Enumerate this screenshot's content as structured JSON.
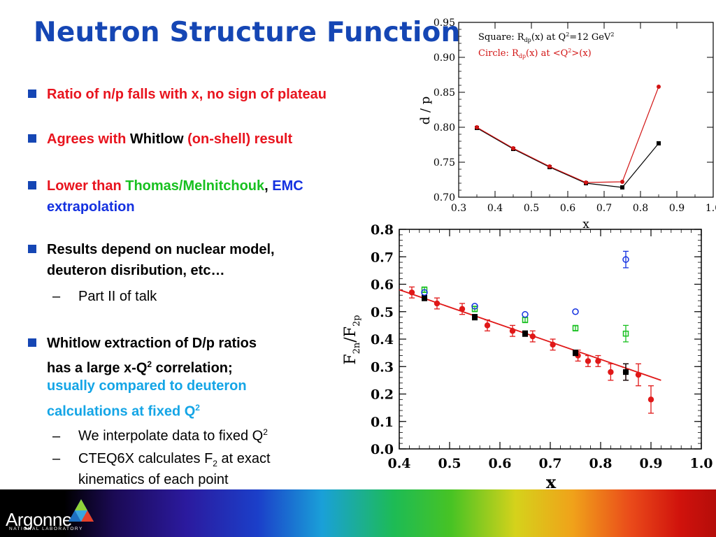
{
  "title": "Neutron Structure Function",
  "bullets": {
    "b1": "Ratio of n/p falls with x, no sign of plateau",
    "b2a": "Agrees with ",
    "b2b": "Whitlow",
    "b2c": " (on-shell) result",
    "b3a": "Lower than ",
    "b3b": "Thomas/Melnitchouk",
    "b3c": ", ",
    "b3d": "EMC",
    "b3e": "extrapolation",
    "b4a": "Results depend on nuclear model,",
    "b4b": "deuteron disribution, etc…",
    "s1": "Part II of talk",
    "b5a": "Whitlow extraction of D/p ratios",
    "b5b": "has a large x-Q",
    "b5c": " correlation;",
    "b5d": "usually compared to deuteron",
    "b5e": "calculations at fixed Q",
    "s2": "We interpolate data to fixed Q",
    "s3a": "CTEQ6X calculates F",
    "s3b": " at exact",
    "s3c": "kinematics of each point",
    "sup2": "2",
    "dash": "–"
  },
  "logo": {
    "name": "Argonne",
    "sub": "NATIONAL LABORATORY"
  },
  "chart_data": [
    {
      "type": "line",
      "xlabel": "x",
      "ylabel": "d / p",
      "xlim": [
        0.3,
        1.0
      ],
      "ylim": [
        0.7,
        0.95
      ],
      "xticks": [
        "0.3",
        "0.4",
        "0.5",
        "0.6",
        "0.7",
        "0.8",
        "0.9",
        "1.0"
      ],
      "yticks": [
        "0.70",
        "0.75",
        "0.80",
        "0.85",
        "0.90",
        "0.95"
      ],
      "legend": {
        "line1": "Square: R",
        "line1sub": "dp",
        "line1rest": "(x)  at  Q",
        "line1sup": "2",
        "line1end": "=12 GeV",
        "line1sup2": "2",
        "line2": "Circle: R",
        "line2sub": "dp",
        "line2rest": "(x)  at  <Q",
        "line2sup": "2",
        "line2end": ">(x)"
      },
      "series": [
        {
          "name": "Square",
          "color": "#000000",
          "x": [
            0.35,
            0.45,
            0.55,
            0.65,
            0.75,
            0.85
          ],
          "y": [
            0.799,
            0.769,
            0.743,
            0.72,
            0.714,
            0.777
          ]
        },
        {
          "name": "Circle",
          "color": "#d21414",
          "x": [
            0.35,
            0.45,
            0.55,
            0.65,
            0.75,
            0.85
          ],
          "y": [
            0.8,
            0.77,
            0.744,
            0.721,
            0.722,
            0.858
          ]
        }
      ]
    },
    {
      "type": "scatter",
      "xlabel": "x",
      "ylabel": "F2n/F2p",
      "xlim": [
        0.4,
        1.0
      ],
      "ylim": [
        0.0,
        0.8
      ],
      "xticks": [
        "0.4",
        "0.5",
        "0.6",
        "0.7",
        "0.8",
        "0.9",
        "1.0"
      ],
      "yticks": [
        "0.0",
        "0.1",
        "0.2",
        "0.3",
        "0.4",
        "0.5",
        "0.6",
        "0.7",
        "0.8"
      ],
      "fit_line": {
        "x": [
          0.4,
          0.92
        ],
        "y": [
          0.58,
          0.25
        ],
        "color": "#e01818"
      },
      "series": [
        {
          "name": "red",
          "color": "#e01818",
          "x": [
            0.425,
            0.475,
            0.525,
            0.575,
            0.625,
            0.665,
            0.705,
            0.755,
            0.775,
            0.795,
            0.82,
            0.85,
            0.875,
            0.9
          ],
          "y": [
            0.57,
            0.53,
            0.51,
            0.45,
            0.43,
            0.41,
            0.38,
            0.34,
            0.32,
            0.32,
            0.28,
            0.28,
            0.27,
            0.18
          ],
          "err": [
            0.02,
            0.02,
            0.02,
            0.02,
            0.02,
            0.02,
            0.02,
            0.02,
            0.02,
            0.02,
            0.03,
            0.03,
            0.04,
            0.05
          ]
        },
        {
          "name": "black",
          "color": "#000000",
          "x": [
            0.45,
            0.55,
            0.65,
            0.75,
            0.85
          ],
          "y": [
            0.55,
            0.48,
            0.42,
            0.35,
            0.28
          ],
          "err": [
            0.01,
            0.01,
            0.01,
            0.01,
            0.03
          ]
        },
        {
          "name": "green",
          "color": "#18c020",
          "x": [
            0.45,
            0.55,
            0.65,
            0.75,
            0.85
          ],
          "y": [
            0.58,
            0.51,
            0.47,
            0.44,
            0.42
          ],
          "err": [
            0.01,
            0.01,
            0.01,
            0.01,
            0.03
          ]
        },
        {
          "name": "blue",
          "color": "#1431e0",
          "x": [
            0.45,
            0.55,
            0.65,
            0.75,
            0.85
          ],
          "y": [
            0.57,
            0.52,
            0.49,
            0.5,
            0.69
          ],
          "err": [
            0.0,
            0.0,
            0.0,
            0.0,
            0.03
          ]
        }
      ]
    }
  ]
}
